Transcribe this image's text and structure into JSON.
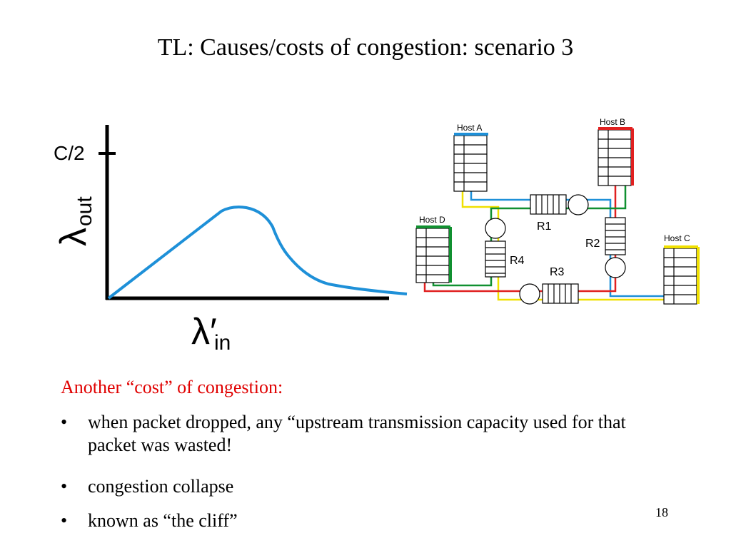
{
  "header": {
    "title": "TL: Causes/costs of congestion: scenario 3"
  },
  "graph": {
    "y_tick": "C/2",
    "y_label": {
      "symbol": "λ",
      "sub": "out"
    },
    "x_label": {
      "symbol": "λ′",
      "sub": "in"
    }
  },
  "network": {
    "hosts": [
      "Host A",
      "Host B",
      "Host C",
      "Host D"
    ],
    "routers": [
      "R1",
      "R2",
      "R3",
      "R4"
    ]
  },
  "body": {
    "heading": "Another “cost” of congestion:",
    "bullets": [
      "when packet dropped, any “upstream transmission capacity used for that packet was wasted!",
      "congestion collapse",
      "known as “the cliff”"
    ]
  },
  "footer": {
    "page": "18"
  }
}
